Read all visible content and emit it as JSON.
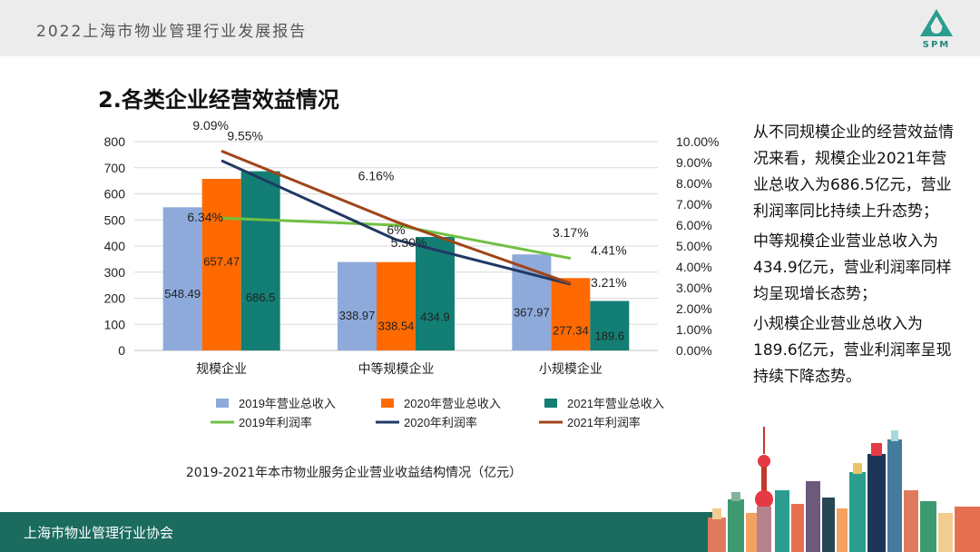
{
  "header": {
    "title": "2022上海市物业管理行业发展报告",
    "logo_text": "SPM",
    "logo_icon": "spm-triangle-logo"
  },
  "section_title": "2.各类企业经营效益情况",
  "caption": "2019-2021年本市物业服务企业营业收益结构情况（亿元）",
  "side_paragraphs": [
    "从不同规模企业的经营效益情况来看，规模企业2021年营业总收入为686.5亿元，营业利润率同比持续上升态势；",
    "中等规模企业营业总收入为434.9亿元，营业利润率同样均呈现增长态势；",
    "小规模企业营业总收入为189.6亿元，营业利润率呈现持续下降态势。"
  ],
  "footer": {
    "text": "上海市物业管理行业协会"
  },
  "chart_data": {
    "type": "bar",
    "categories": [
      "规模企业",
      "中等规模企业",
      "小规模企业"
    ],
    "series": [
      {
        "name": "2019年营业总收入",
        "kind": "bar",
        "color": "#8eaadb",
        "values": [
          548.49,
          338.97,
          367.97
        ],
        "labels": [
          "548.49",
          "338.97",
          "367.97"
        ]
      },
      {
        "name": "2020年营业总收入",
        "kind": "bar",
        "color": "#ff6a00",
        "values": [
          657.47,
          338.54,
          277.34
        ],
        "labels": [
          "657.47",
          "338.54",
          "277.34"
        ]
      },
      {
        "name": "2021年营业总收入",
        "kind": "bar",
        "color": "#137e73",
        "values": [
          686.5,
          434.9,
          189.6
        ],
        "labels": [
          "686.5",
          "434.9",
          "189.6"
        ]
      },
      {
        "name": "2019年利润率",
        "kind": "line",
        "axis": "right",
        "color": "#70c041",
        "values": [
          6.34,
          6.0,
          4.41
        ],
        "labels": [
          "6.34%",
          "6%",
          "4.41%"
        ]
      },
      {
        "name": "2020年利润率",
        "kind": "line",
        "axis": "right",
        "color": "#203864",
        "values": [
          9.09,
          5.3,
          3.17
        ],
        "labels": [
          "9.09%",
          "5.30%",
          "3.17%"
        ]
      },
      {
        "name": "2021年利润率",
        "kind": "line",
        "axis": "right",
        "color": "#a0441a",
        "values": [
          9.55,
          6.16,
          3.21
        ],
        "labels": [
          "9.55%",
          "6.16%",
          "3.21%"
        ]
      }
    ],
    "y_left": {
      "min": 0,
      "max": 800,
      "ticks": [
        "0",
        "100",
        "200",
        "300",
        "400",
        "500",
        "600",
        "700",
        "800"
      ]
    },
    "y_right": {
      "min": 0,
      "max": 10,
      "ticks": [
        "0.00%",
        "1.00%",
        "2.00%",
        "3.00%",
        "4.00%",
        "5.00%",
        "6.00%",
        "7.00%",
        "8.00%",
        "9.00%",
        "10.00%"
      ]
    },
    "grid": true,
    "legend_position": "bottom"
  }
}
